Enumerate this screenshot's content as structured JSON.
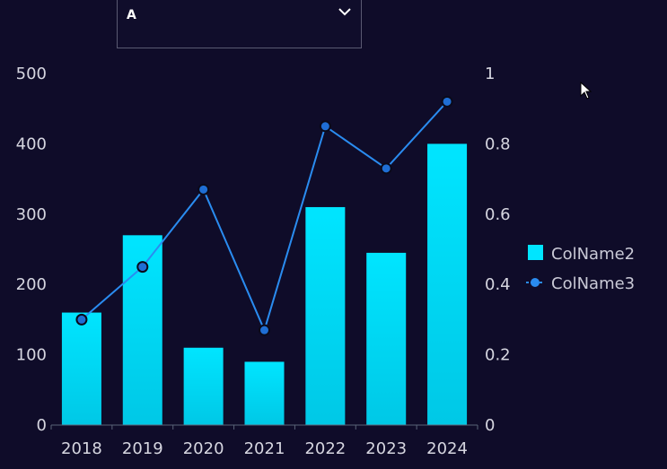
{
  "dropdown": {
    "value": "A",
    "icon": "chevron-down-icon"
  },
  "colors": {
    "background": "#0f0c29",
    "bar_top": "#00e5ff",
    "bar_bottom": "#00c8e6",
    "line": "#2a8cf0",
    "marker_fill": "#1f6ed4",
    "marker_stroke": "#0a0a1a",
    "axis": "#5a6378"
  },
  "chart_data": {
    "type": "bar",
    "categories": [
      "2018",
      "2019",
      "2020",
      "2021",
      "2022",
      "2023",
      "2024"
    ],
    "series": [
      {
        "name": "ColName2",
        "type": "bar",
        "axis": "left",
        "values": [
          160,
          270,
          110,
          90,
          310,
          245,
          400
        ]
      },
      {
        "name": "ColName3",
        "type": "line",
        "axis": "right",
        "values": [
          0.3,
          0.45,
          0.67,
          0.27,
          0.85,
          0.73,
          0.92
        ]
      }
    ],
    "y_left": {
      "ylim": [
        0,
        500
      ],
      "ticks": [
        "0",
        "100",
        "200",
        "300",
        "400",
        "500"
      ]
    },
    "y_right": {
      "ylim": [
        0,
        1
      ],
      "ticks": [
        "0",
        "0.2",
        "0.4",
        "0.6",
        "0.8",
        "1"
      ]
    },
    "grid": false,
    "legend_position": "right"
  }
}
